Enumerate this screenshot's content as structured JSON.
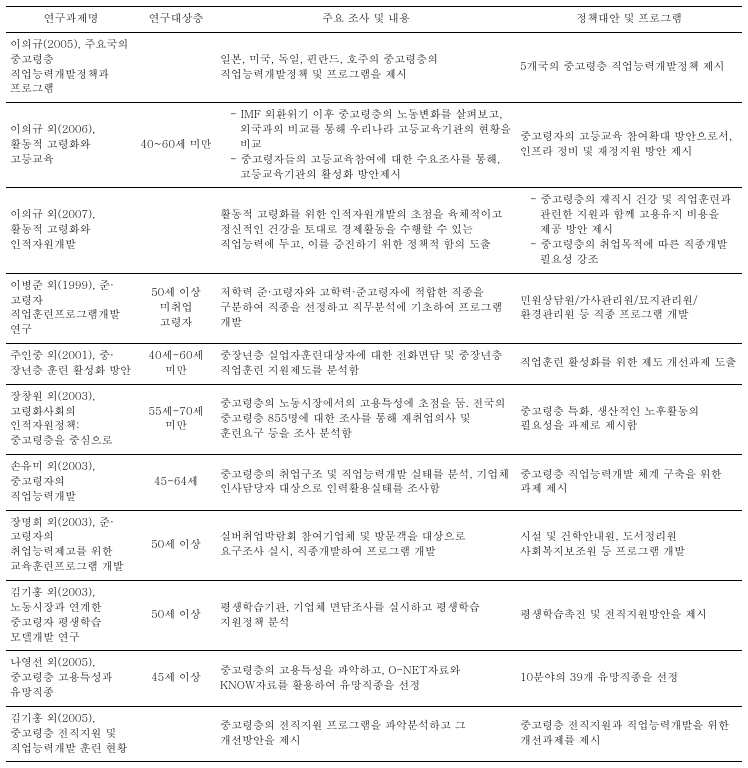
{
  "columns": [
    "연구과제명",
    "연구대상층",
    "주요 조사 및 내용",
    "정책대안 및 프로그램"
  ],
  "rows": [
    {
      "title": "이의규(2005), 주요국의 중고령층 직업능력개발정책과 프로그램",
      "population": "",
      "content_plain": "일본, 미국, 독일, 핀란드, 호주의 중고령층의 직업능력개발정책 및 프로그램을 제시",
      "policy_plain": "5개국의 중고령층 직업능력개발정책 제시"
    },
    {
      "title": "이의규 외(2006), 활동적 고령화와 고등교육",
      "population": "40~60세 미만",
      "content_list": [
        "IMF 외환위기 이후 중고령층의 노동변화를 살펴보고, 외국과의 비교를 통해 우리나라 고등교육기관의 현황을 비교",
        "중고령자들의 고등교육참여에 대한 수요조사를 통해, 고등교육기관의 활성화 방안제시"
      ],
      "policy_plain": "중고령자의 고등교육 참여확대 방안으로서, 인프라 정비 및 재정지원 방안 제시"
    },
    {
      "title": "이의규 외(2007), 활동적 고령화와 인적자원개발",
      "population": "",
      "content_plain": "활동적 고령화를 위한 인적자원개발의 초점을 육체적이고 정신적인 건강을 토대로 경제활동을 수행할 수 있는 직업능력에 두고, 이를 증진하기 위한 정책적 함의 도출",
      "policy_list": [
        "중고령층의 재직시 건강 및 직업훈련과 관련한 지원과 함께 고용유지 비용을 제공 방안 제시",
        "중고령층의 취업목적에 따른 직종개발 필요성 강조"
      ]
    },
    {
      "title": "이병준 외(1999), 준·고령자 직업훈련프로그램개발 연구",
      "population": "50세 이상\n미취업\n고령자",
      "content_plain": "저학력 준·고령자와 고학력·준고령자에 적합한 직종을 구분하여 직종을 선정하고 직무분석에 기초하여 프로그램 개발",
      "policy_plain": "민원상담원/가사관리원/묘지관리원/환경관리원 등 직종 프로그램 개발"
    },
    {
      "title": "주인중 외(2001), 중·장년층 훈련 활성화 방안",
      "population": "40세-60세\n미만",
      "content_plain": "중장년층 실업자훈련대상자에 대한 전화면담 및 중장년층 직업훈련 지원제도를 분석함",
      "policy_plain": "직업훈련 활성화를 위한 제도 개선과제 도출"
    },
    {
      "title": "장창원 외(2003), 고령화사회의 인적자원정책: 중고령층을 중심으로",
      "population": "55세-70세\n미만",
      "content_plain": "중고령층의 노동시장에서의 고용특성에 초점을 둠. 전국의 중고령층 855명에 대한 조사를 통해 재취업의사 및 훈련요구 등을 조사 분석함",
      "policy_plain": "중고령층 특화, 생산적인 노후활동의 필요성을 과제로 제시함"
    },
    {
      "title": "손유미 외(2003), 중고령자의 직업능력개발",
      "population": "45-64세",
      "content_plain": "중고령층의 취업구조 및 직업능력개발 실태를 분석, 기업체 인사담당자 대상으로 인력활용실태를 조사함",
      "policy_plain": "중고령층 직업능력개발 체계 구축을 위한 과제 제시"
    },
    {
      "title": "장명희 외(2003), 준·고령자의 취업능력제고를 위한 교육훈련프로그램 개발",
      "population": "50세 이상",
      "content_plain": "실버취업박람회 참여기업체 및 방문객을 대상으로 요구조사 실시, 직종개발하여 프로그램 개발",
      "policy_plain": "시설 및 건학안내원, 도서정리원 사회복지보조원 등 프로그램 개발"
    },
    {
      "title": "김기홍 외(2003), 노동시장과 연계한 중고령자 평생학습 모델개발 연구",
      "population": "50세 이상",
      "content_plain": "평생학습기관, 기업체 면담조사를 실시하고 평생학습 지원정책 분석",
      "policy_plain": "평생학습촉진 및 전직지원방안을 제시"
    },
    {
      "title": "나영선 외(2005), 중고령층 고용특성과 유망직종",
      "population": "45세 이상",
      "content_plain": "중고령층의 고용특성을 파악하고, O-NET자료와 KNOW자료를 활용하여 유망직종을 선정",
      "policy_plain": "10분야의 39개 유망직종을 선정"
    },
    {
      "title": "김기홍 외(2005), 중고령층 전직지원 및 직업능력개발 훈련 현황",
      "population": "",
      "content_plain": "중고령층의 전직지원 프로그램을 파악분석하고 그 개선방안을 제시",
      "policy_plain": "중고령층 전직지원과 직업능력개발을 위한 개선과제를 제시"
    }
  ]
}
